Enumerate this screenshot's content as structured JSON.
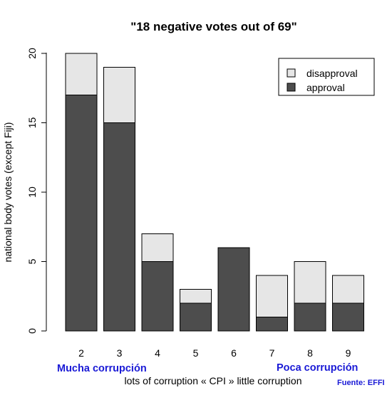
{
  "chart_data": {
    "type": "bar",
    "stacked": true,
    "title": "\"18 negative votes out of 69\"",
    "xlabel": "lots of corruption « CPI » little corruption",
    "ylabel": "national body votes (except Fiji)",
    "categories": [
      "2",
      "3",
      "4",
      "5",
      "6",
      "7",
      "8",
      "9"
    ],
    "series": [
      {
        "name": "approval",
        "color": "#4d4d4d",
        "values": [
          17,
          15,
          5,
          2,
          6,
          1,
          2,
          2
        ]
      },
      {
        "name": "disapproval",
        "color": "#e6e6e6",
        "values": [
          3,
          4,
          2,
          1,
          0,
          3,
          3,
          2
        ]
      }
    ],
    "ylim": [
      0,
      20
    ],
    "yticks": [
      "0",
      "5",
      "10",
      "15",
      "20"
    ],
    "grid": false,
    "legend": {
      "position": "top-right",
      "entries": [
        "disapproval",
        "approval"
      ]
    },
    "annotations": {
      "left": "Mucha corrupción",
      "right": "Poca corrupción",
      "source": "Fuente: EFFI"
    }
  }
}
